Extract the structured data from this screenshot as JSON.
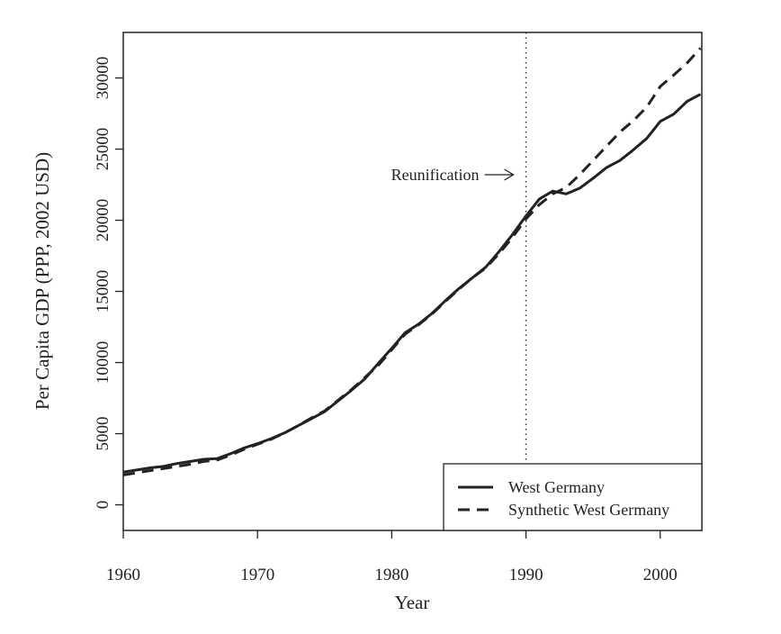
{
  "chart_data": {
    "type": "line",
    "xlabel": "Year",
    "ylabel": "Per Capita GDP (PPP, 2002 USD)",
    "xlim": [
      1960,
      2003
    ],
    "ylim": [
      0,
      33000
    ],
    "x_ticks": [
      1960,
      1970,
      1980,
      1990,
      2000
    ],
    "y_ticks": [
      0,
      5000,
      10000,
      15000,
      20000,
      25000,
      30000
    ],
    "grid": false,
    "legend_position": "bottom-right",
    "annotation": {
      "text": "Reunification",
      "x": 1990,
      "line_style": "dotted",
      "arrow_y": 23200
    },
    "x": [
      1960,
      1961,
      1962,
      1963,
      1964,
      1965,
      1966,
      1967,
      1968,
      1969,
      1970,
      1971,
      1972,
      1973,
      1974,
      1975,
      1976,
      1977,
      1978,
      1979,
      1980,
      1981,
      1982,
      1983,
      1984,
      1985,
      1986,
      1987,
      1988,
      1989,
      1990,
      1991,
      1992,
      1993,
      1994,
      1995,
      1996,
      1997,
      1998,
      1999,
      2000,
      2001,
      2002,
      2003
    ],
    "series": [
      {
        "name": "West Germany",
        "style": "solid",
        "color": "#222222",
        "values": [
          2300,
          2450,
          2600,
          2700,
          2900,
          3050,
          3200,
          3250,
          3600,
          4000,
          4300,
          4650,
          5050,
          5550,
          6050,
          6550,
          7300,
          8050,
          8850,
          9950,
          11000,
          12100,
          12700,
          13450,
          14350,
          15200,
          15950,
          16700,
          17800,
          19000,
          20300,
          21500,
          22050,
          21850,
          22250,
          22950,
          23700,
          24200,
          24950,
          25750,
          26950,
          27450,
          28350,
          28850
        ]
      },
      {
        "name": "Synthetic West Germany",
        "style": "dashed",
        "color": "#222222",
        "values": [
          2100,
          2250,
          2400,
          2550,
          2700,
          2850,
          3050,
          3150,
          3500,
          3900,
          4250,
          4600,
          5050,
          5550,
          6100,
          6600,
          7350,
          8100,
          8950,
          9800,
          10900,
          12000,
          12650,
          13400,
          14300,
          15150,
          15950,
          16650,
          17650,
          18800,
          20100,
          21100,
          21850,
          22300,
          23200,
          24200,
          25200,
          26200,
          27000,
          27950,
          29400,
          30200,
          31050,
          32100
        ]
      }
    ]
  }
}
